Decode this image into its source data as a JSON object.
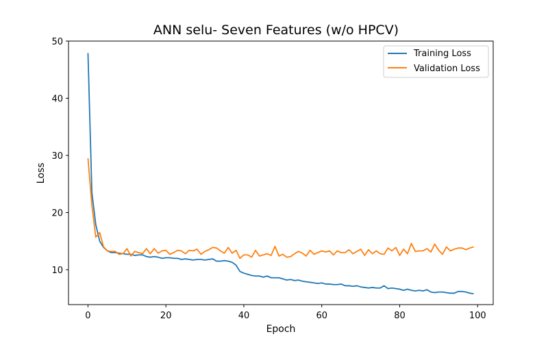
{
  "chart_data": {
    "type": "line",
    "title": "ANN selu- Seven Features (w/o HPCV)",
    "xlabel": "Epoch",
    "ylabel": "Loss",
    "xlim": [
      -5,
      104
    ],
    "ylim": [
      3.9,
      50
    ],
    "xticks": [
      0,
      20,
      40,
      60,
      80,
      100
    ],
    "yticks": [
      10,
      20,
      30,
      40,
      50
    ],
    "grid": false,
    "legend_position": "top-right",
    "series": [
      {
        "name": "Training Loss",
        "color": "#1f77b4",
        "x": [
          0,
          1,
          2,
          3,
          4,
          5,
          6,
          7,
          8,
          9,
          10,
          11,
          12,
          13,
          14,
          15,
          16,
          17,
          18,
          19,
          20,
          21,
          22,
          23,
          24,
          25,
          26,
          27,
          28,
          29,
          30,
          31,
          32,
          33,
          34,
          35,
          36,
          37,
          38,
          39,
          40,
          41,
          42,
          43,
          44,
          45,
          46,
          47,
          48,
          49,
          50,
          51,
          52,
          53,
          54,
          55,
          56,
          57,
          58,
          59,
          60,
          61,
          62,
          63,
          64,
          65,
          66,
          67,
          68,
          69,
          70,
          71,
          72,
          73,
          74,
          75,
          76,
          77,
          78,
          79,
          80,
          81,
          82,
          83,
          84,
          85,
          86,
          87,
          88,
          89,
          90,
          91,
          92,
          93,
          94,
          95,
          96,
          97,
          98,
          99
        ],
        "y": [
          47.9,
          23.5,
          17.9,
          15.0,
          13.9,
          13.3,
          13.0,
          13.0,
          12.9,
          12.8,
          12.7,
          12.7,
          12.5,
          12.6,
          12.6,
          12.3,
          12.2,
          12.3,
          12.2,
          12.0,
          12.1,
          12.1,
          12.0,
          12.0,
          11.8,
          11.9,
          11.8,
          11.7,
          11.8,
          11.8,
          11.7,
          11.8,
          11.9,
          11.5,
          11.5,
          11.6,
          11.5,
          11.3,
          10.8,
          9.7,
          9.4,
          9.2,
          9.0,
          8.9,
          8.9,
          8.7,
          8.9,
          8.6,
          8.6,
          8.6,
          8.4,
          8.2,
          8.3,
          8.1,
          8.2,
          8.0,
          7.9,
          7.8,
          7.7,
          7.6,
          7.7,
          7.5,
          7.5,
          7.4,
          7.4,
          7.5,
          7.2,
          7.2,
          7.1,
          7.2,
          7.0,
          6.9,
          6.8,
          6.9,
          6.8,
          6.8,
          7.2,
          6.7,
          6.8,
          6.7,
          6.6,
          6.4,
          6.6,
          6.4,
          6.3,
          6.4,
          6.3,
          6.5,
          6.1,
          6.0,
          6.1,
          6.1,
          6.0,
          5.9,
          5.9,
          6.2,
          6.2,
          6.1,
          5.9,
          5.8
        ]
      },
      {
        "name": "Validation Loss",
        "color": "#ff7f0e",
        "x": [
          0,
          1,
          2,
          3,
          4,
          5,
          6,
          7,
          8,
          9,
          10,
          11,
          12,
          13,
          14,
          15,
          16,
          17,
          18,
          19,
          20,
          21,
          22,
          23,
          24,
          25,
          26,
          27,
          28,
          29,
          30,
          31,
          32,
          33,
          34,
          35,
          36,
          37,
          38,
          39,
          40,
          41,
          42,
          43,
          44,
          45,
          46,
          47,
          48,
          49,
          50,
          51,
          52,
          53,
          54,
          55,
          56,
          57,
          58,
          59,
          60,
          61,
          62,
          63,
          64,
          65,
          66,
          67,
          68,
          69,
          70,
          71,
          72,
          73,
          74,
          75,
          76,
          77,
          78,
          79,
          80,
          81,
          82,
          83,
          84,
          85,
          86,
          87,
          88,
          89,
          90,
          91,
          92,
          93,
          94,
          95,
          96,
          97,
          98,
          99
        ],
        "y": [
          29.5,
          21.3,
          15.7,
          16.5,
          14.0,
          13.3,
          13.2,
          13.2,
          12.7,
          12.8,
          13.7,
          12.4,
          13.2,
          13.0,
          12.8,
          13.7,
          12.8,
          13.7,
          12.9,
          13.3,
          13.4,
          12.7,
          13.0,
          13.4,
          13.3,
          12.8,
          13.4,
          13.3,
          13.6,
          12.7,
          13.2,
          13.5,
          13.9,
          13.8,
          13.3,
          12.9,
          13.9,
          12.9,
          13.4,
          12.0,
          12.6,
          12.6,
          12.2,
          13.4,
          12.4,
          12.6,
          12.8,
          12.5,
          14.1,
          12.4,
          12.7,
          12.2,
          12.3,
          12.8,
          13.2,
          12.9,
          12.4,
          13.4,
          12.7,
          13.0,
          13.3,
          13.1,
          13.3,
          12.6,
          13.3,
          13.0,
          13.0,
          13.5,
          12.8,
          13.2,
          13.6,
          12.5,
          13.5,
          12.8,
          13.3,
          12.8,
          12.7,
          13.8,
          13.3,
          13.9,
          12.5,
          13.6,
          12.8,
          14.6,
          13.2,
          13.3,
          13.3,
          13.7,
          13.1,
          14.5,
          13.4,
          12.7,
          14.0,
          13.3,
          13.6,
          13.8,
          13.8,
          13.5,
          13.8,
          14.0
        ]
      }
    ]
  }
}
